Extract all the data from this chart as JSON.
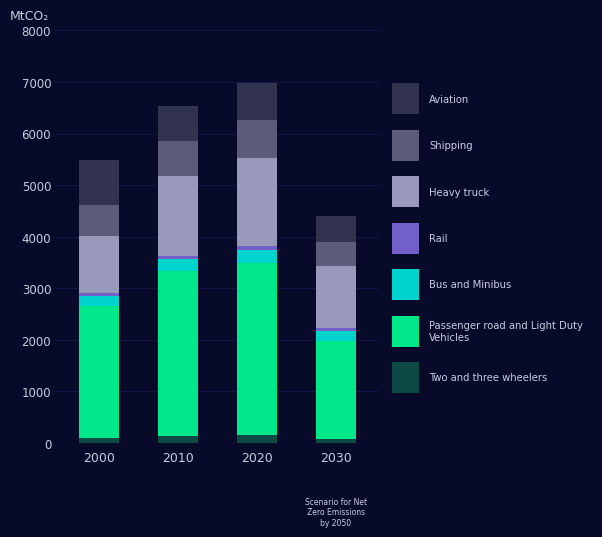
{
  "years": [
    "2000",
    "2010",
    "2020",
    "2030"
  ],
  "x2030_sub": "Scenario for Net\nZero Emissions\nby 2050",
  "x_positions": [
    0,
    1,
    2,
    3
  ],
  "segments": {
    "Two and three wheelers": [
      100,
      130,
      150,
      80
    ],
    "Passenger road and Light Duty Vehicles": [
      2550,
      3200,
      3350,
      1900
    ],
    "Bus and Minibus": [
      200,
      230,
      250,
      200
    ],
    "Rail": [
      60,
      70,
      75,
      45
    ],
    "Heavy truck": [
      1100,
      1550,
      1700,
      1200
    ],
    "Shipping": [
      600,
      680,
      730,
      480
    ],
    "Aviation": [
      870,
      680,
      720,
      500
    ]
  },
  "colors": {
    "Two and three wheelers": "#0d4a45",
    "Passenger road and Light Duty Vehicles": "#00e88a",
    "Bus and Minibus": "#00d4cc",
    "Rail": "#7060c8",
    "Heavy truck": "#9999bb",
    "Shipping": "#5c5c7a",
    "Aviation": "#32334e"
  },
  "ylabel_top": "MtCO₂",
  "ylim": [
    0,
    8000
  ],
  "yticks": [
    0,
    1000,
    2000,
    3000,
    4000,
    5000,
    6000,
    7000,
    8000
  ],
  "bg_color": "#080a2a",
  "text_color": "#c8cce0",
  "bar_width": 0.5,
  "legend_order": [
    "Aviation",
    "Shipping",
    "Heavy truck",
    "Rail",
    "Bus and Minibus",
    "Passenger road and Light Duty Vehicles",
    "Two and three wheelers"
  ]
}
